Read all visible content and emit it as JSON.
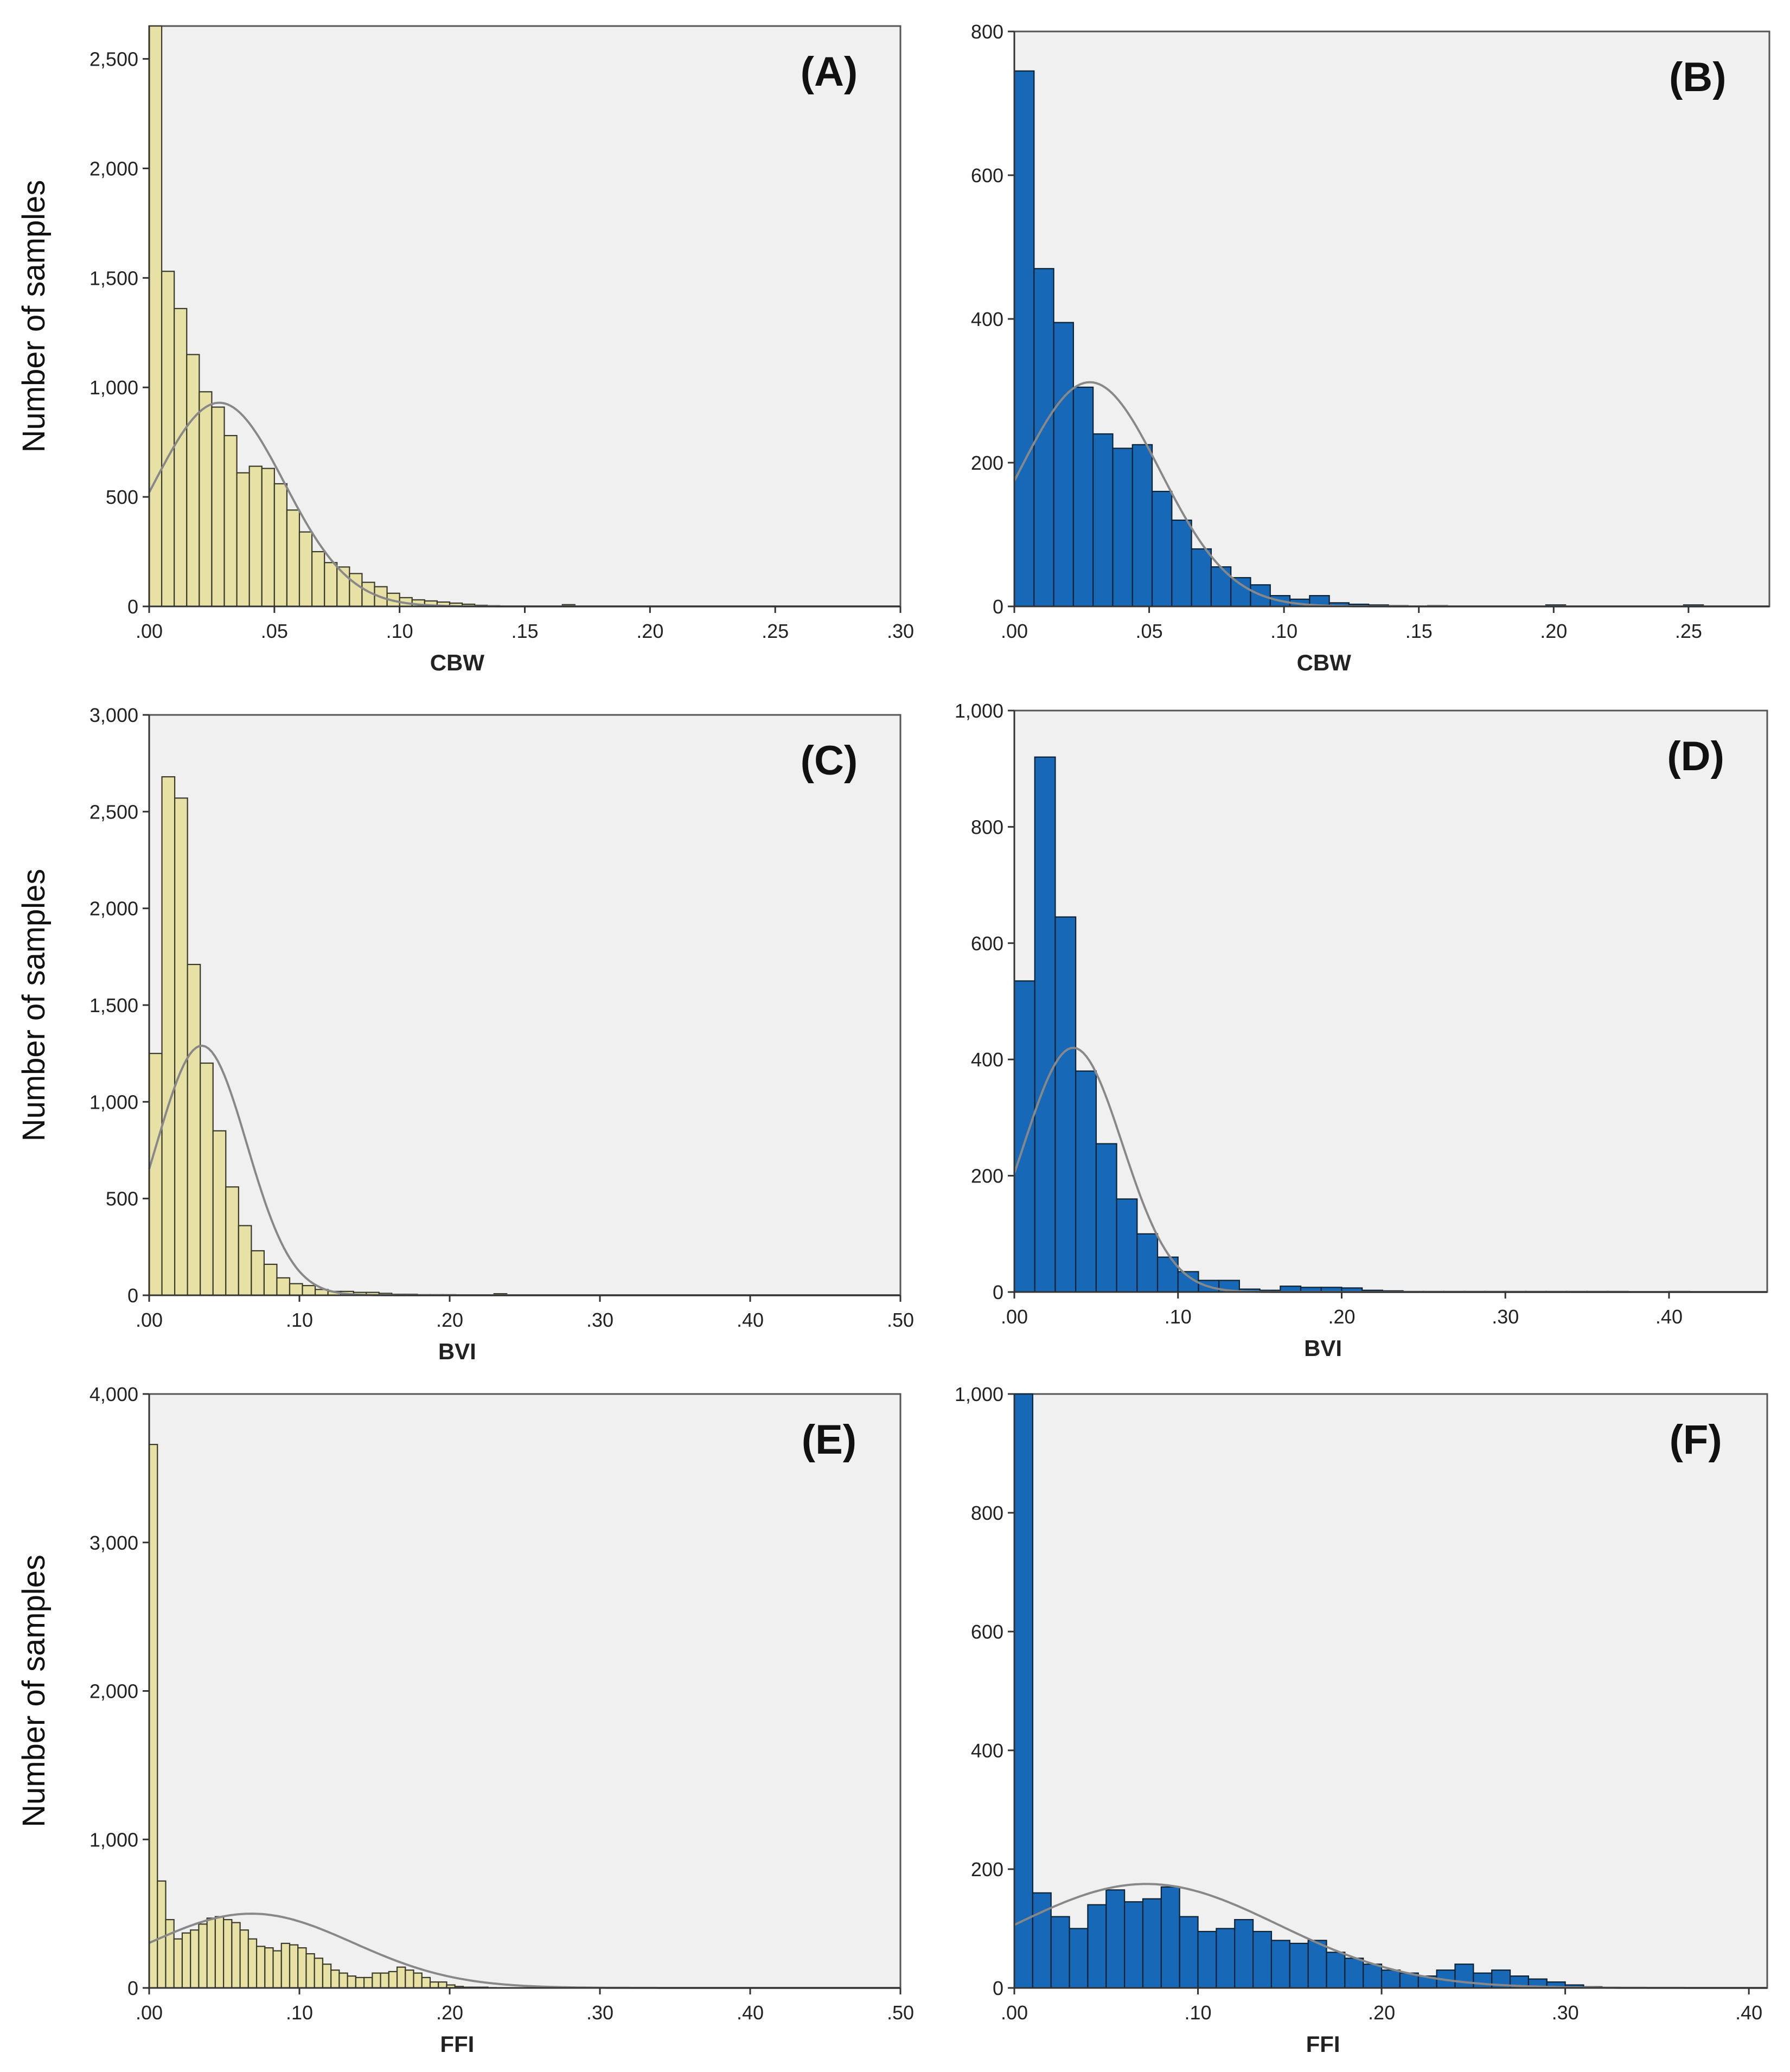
{
  "figure": {
    "description": "Histograms of CBW, BVI and FFI with fitted normal curves"
  },
  "colors": {
    "dataset1_fill": "#e8e1a6",
    "dataset1_stroke": "#3a3a2a",
    "dataset2_fill": "#1769b8",
    "dataset2_stroke": "#0c2233",
    "plot_bg": "#f0f0f0",
    "curve": "#888888"
  },
  "chart_data": [
    {
      "id": "A",
      "type": "bar",
      "panel_label": "(A)",
      "xlabel": "CBW",
      "ylabel": "Number of samples",
      "xlim": [
        0,
        0.3
      ],
      "ylim": [
        0,
        2650
      ],
      "xticks": [
        0,
        0.05,
        0.1,
        0.15,
        0.2,
        0.25,
        0.3
      ],
      "xtick_labels": [
        ".00",
        ".05",
        ".10",
        ".15",
        ".20",
        ".25",
        ".30"
      ],
      "yticks": [
        0,
        500,
        1000,
        1500,
        2000,
        2500
      ],
      "ytick_labels": [
        "0",
        "500",
        "1,000",
        "1,500",
        "2,000",
        "2,500"
      ],
      "bin_start": 0,
      "bin_width": 0.005,
      "values": [
        2650,
        1530,
        1360,
        1150,
        980,
        910,
        780,
        610,
        640,
        630,
        560,
        440,
        340,
        250,
        200,
        180,
        150,
        110,
        90,
        60,
        40,
        30,
        25,
        20,
        15,
        10,
        5,
        3,
        2,
        2,
        2,
        2,
        1,
        8
      ],
      "curve": {
        "mean": 0.028,
        "sd": 0.026,
        "peak": 930
      },
      "color": "dataset1"
    },
    {
      "id": "B",
      "type": "bar",
      "panel_label": "(B)",
      "xlabel": "CBW",
      "ylabel": "",
      "xlim": [
        0,
        0.28
      ],
      "ylim": [
        0,
        800
      ],
      "xticks": [
        0,
        0.05,
        0.1,
        0.15,
        0.2,
        0.25
      ],
      "xtick_labels": [
        ".00",
        ".05",
        ".10",
        ".15",
        ".20",
        ".25"
      ],
      "yticks": [
        0,
        200,
        400,
        600,
        800
      ],
      "ytick_labels": [
        "0",
        "200",
        "400",
        "600",
        "800"
      ],
      "bin_start": 0,
      "bin_width": 0.0073,
      "values": [
        745,
        470,
        395,
        305,
        240,
        220,
        225,
        160,
        120,
        80,
        55,
        40,
        30,
        15,
        10,
        15,
        5,
        3,
        2,
        1,
        0,
        1,
        0,
        0,
        0,
        0,
        0,
        2,
        0,
        0,
        0,
        0,
        0,
        0,
        2
      ],
      "curve": {
        "mean": 0.028,
        "sd": 0.026,
        "peak": 312
      },
      "color": "dataset2"
    },
    {
      "id": "C",
      "type": "bar",
      "panel_label": "(C)",
      "xlabel": "BVI",
      "ylabel": "Number of samples",
      "xlim": [
        0,
        0.5
      ],
      "ylim": [
        0,
        3000
      ],
      "xticks": [
        0,
        0.1,
        0.2,
        0.3,
        0.4,
        0.5
      ],
      "xtick_labels": [
        ".00",
        ".10",
        ".20",
        ".30",
        ".40",
        ".50"
      ],
      "yticks": [
        0,
        500,
        1000,
        1500,
        2000,
        2500,
        3000
      ],
      "ytick_labels": [
        "0",
        "500",
        "1,000",
        "1,500",
        "2,000",
        "2,500",
        "3,000"
      ],
      "bin_start": 0,
      "bin_width": 0.0085,
      "values": [
        1250,
        2680,
        2570,
        1710,
        1200,
        850,
        560,
        360,
        230,
        160,
        90,
        60,
        50,
        30,
        20,
        20,
        15,
        15,
        10,
        5,
        5,
        3,
        3,
        3,
        2,
        2,
        2,
        8,
        2
      ],
      "curve": {
        "mean": 0.035,
        "sd": 0.03,
        "peak": 1290
      },
      "color": "dataset1"
    },
    {
      "id": "D",
      "type": "bar",
      "panel_label": "(D)",
      "xlabel": "BVI",
      "ylabel": "",
      "xlim": [
        0,
        0.46
      ],
      "ylim": [
        0,
        1000
      ],
      "xticks": [
        0,
        0.1,
        0.2,
        0.3,
        0.4
      ],
      "xtick_labels": [
        ".00",
        ".10",
        ".20",
        ".30",
        ".40"
      ],
      "yticks": [
        0,
        200,
        400,
        600,
        800,
        1000
      ],
      "ytick_labels": [
        "0",
        "200",
        "400",
        "600",
        "800",
        "1,000"
      ],
      "bin_start": 0,
      "bin_width": 0.0125,
      "values": [
        535,
        920,
        645,
        380,
        255,
        160,
        100,
        60,
        35,
        20,
        20,
        5,
        3,
        10,
        8,
        8,
        7,
        3,
        2,
        1,
        1,
        1,
        1,
        1,
        1,
        1,
        1,
        1,
        1,
        1,
        0,
        0,
        1,
        0,
        0,
        0,
        0
      ],
      "curve": {
        "mean": 0.036,
        "sd": 0.03,
        "peak": 420
      },
      "color": "dataset2"
    },
    {
      "id": "E",
      "type": "bar",
      "panel_label": "(E)",
      "xlabel": "FFI",
      "ylabel": "Number of samples",
      "xlim": [
        0,
        0.5
      ],
      "ylim": [
        0,
        4000
      ],
      "xticks": [
        0,
        0.1,
        0.2,
        0.3,
        0.4,
        0.5
      ],
      "xtick_labels": [
        ".00",
        ".10",
        ".20",
        ".30",
        ".40",
        ".50"
      ],
      "yticks": [
        0,
        1000,
        2000,
        3000,
        4000
      ],
      "ytick_labels": [
        "0",
        "1,000",
        "2,000",
        "3,000",
        "4,000"
      ],
      "bin_start": 0,
      "bin_width": 0.0055,
      "values": [
        3660,
        720,
        460,
        330,
        370,
        390,
        430,
        470,
        480,
        460,
        440,
        390,
        330,
        280,
        270,
        250,
        300,
        290,
        270,
        230,
        200,
        160,
        120,
        100,
        80,
        70,
        70,
        100,
        100,
        110,
        140,
        120,
        100,
        70,
        40,
        40,
        20,
        10,
        5,
        5,
        5,
        2,
        1
      ],
      "curve": {
        "mean": 0.068,
        "sd": 0.068,
        "peak": 500
      },
      "color": "dataset1"
    },
    {
      "id": "F",
      "type": "bar",
      "panel_label": "(F)",
      "xlabel": "FFI",
      "ylabel": "",
      "xlim": [
        0,
        0.41
      ],
      "ylim": [
        0,
        1000
      ],
      "xticks": [
        0,
        0.1,
        0.2,
        0.3,
        0.4
      ],
      "xtick_labels": [
        ".00",
        ".10",
        ".20",
        ".30",
        ".40"
      ],
      "yticks": [
        0,
        200,
        400,
        600,
        800,
        1000
      ],
      "ytick_labels": [
        "0",
        "200",
        "400",
        "600",
        "800",
        "1,000"
      ],
      "bin_start": 0,
      "bin_width": 0.01,
      "values": [
        1000,
        160,
        120,
        100,
        140,
        165,
        145,
        150,
        170,
        120,
        95,
        100,
        115,
        95,
        80,
        75,
        80,
        60,
        50,
        40,
        30,
        25,
        20,
        30,
        40,
        25,
        30,
        20,
        15,
        10,
        5,
        2,
        1
      ],
      "curve": {
        "mean": 0.072,
        "sd": 0.072,
        "peak": 175
      },
      "color": "dataset2"
    }
  ]
}
